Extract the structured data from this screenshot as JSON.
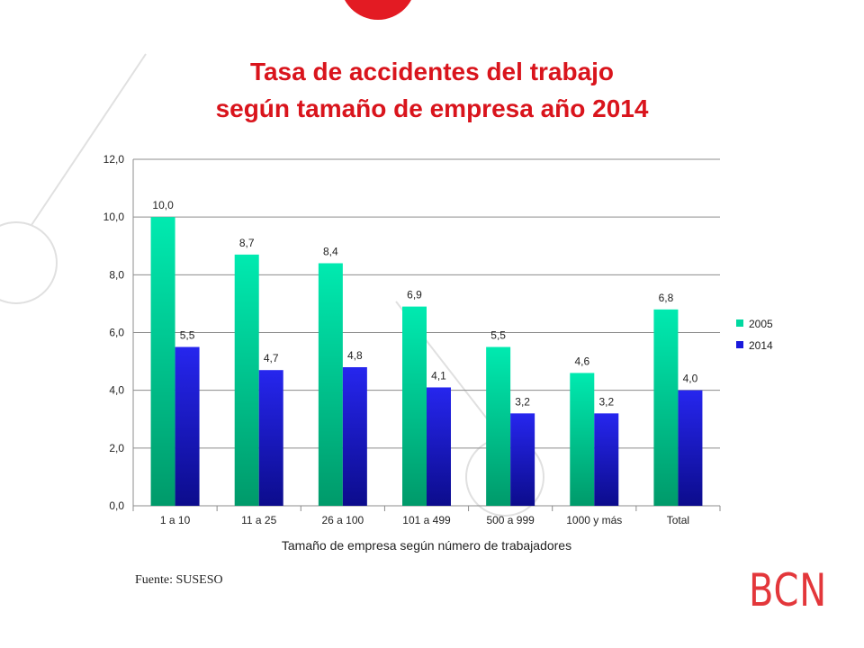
{
  "title_line1": "Tasa de accidentes del trabajo",
  "title_line2": "según tamaño de empresa año 2014",
  "source": "Fuente: SUSESO",
  "logo_text": "BCN",
  "colors": {
    "title": "#d9141c",
    "series_2005": "#00d9a0",
    "series_2014": "#1a1adc",
    "decor_circle": "#e0e0e0",
    "logo": "#e3373b"
  },
  "chart_data": {
    "type": "bar",
    "title": "",
    "xlabel": "Tamaño de empresa según número de trabajadores",
    "ylabel": "",
    "ylim": [
      0,
      12
    ],
    "yticks": [
      0,
      2,
      4,
      6,
      8,
      10,
      12
    ],
    "ytick_labels": [
      "0,0",
      "2,0",
      "4,0",
      "6,0",
      "8,0",
      "10,0",
      "12,0"
    ],
    "grid": true,
    "legend_position": "right",
    "categories": [
      "1 a 10",
      "11 a 25",
      "26 a 100",
      "101 a 499",
      "500 a 999",
      "1000 y más",
      "Total"
    ],
    "series": [
      {
        "name": "2005",
        "values": [
          10.0,
          8.7,
          8.4,
          6.9,
          5.5,
          4.6,
          6.8
        ],
        "labels": [
          "10,0",
          "8,7",
          "8,4",
          "6,9",
          "5,5",
          "4,6",
          "6,8"
        ]
      },
      {
        "name": "2014",
        "values": [
          5.5,
          4.7,
          4.8,
          4.1,
          3.2,
          3.2,
          4.0
        ],
        "labels": [
          "5,5",
          "4,7",
          "4,8",
          "4,1",
          "3,2",
          "3,2",
          "4,0"
        ]
      }
    ]
  }
}
